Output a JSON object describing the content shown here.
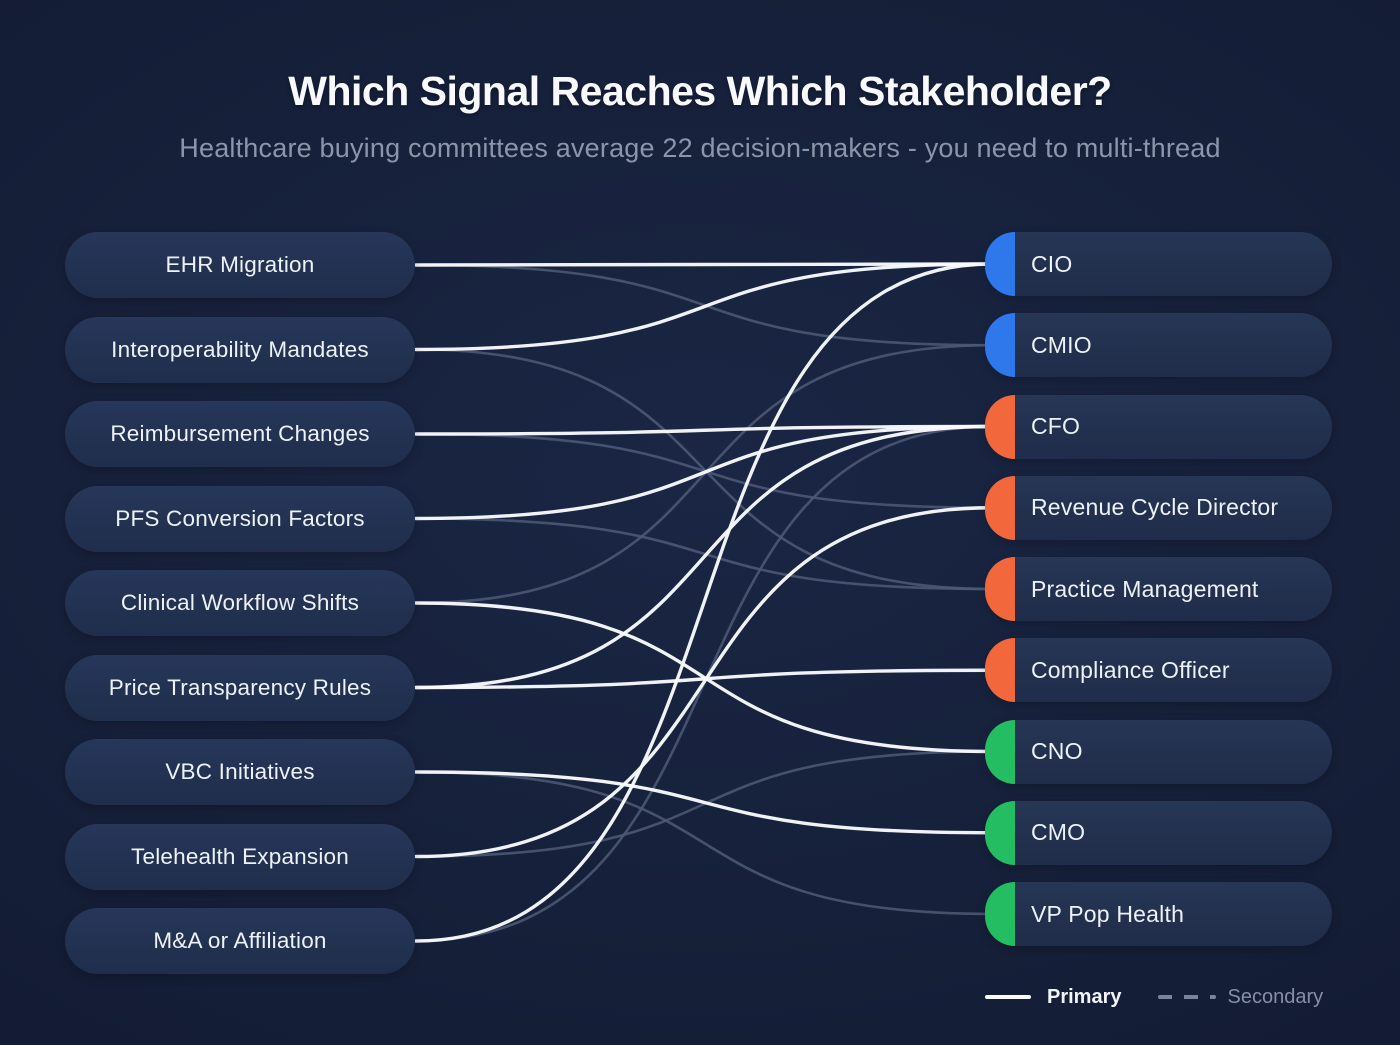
{
  "header": {
    "title": "Which Signal Reaches Which Stakeholder?",
    "subtitle": "Healthcare buying committees average 22 decision-makers - you need to multi-thread"
  },
  "signals": [
    {
      "label": "EHR Migration"
    },
    {
      "label": "Interoperability Mandates"
    },
    {
      "label": "Reimbursement Changes"
    },
    {
      "label": "PFS Conversion Factors"
    },
    {
      "label": "Clinical Workflow Shifts"
    },
    {
      "label": "Price Transparency Rules"
    },
    {
      "label": "VBC Initiatives"
    },
    {
      "label": "Telehealth Expansion"
    },
    {
      "label": "M&A or Affiliation"
    }
  ],
  "stakeholders": [
    {
      "label": "CIO",
      "accent": "#2f78ec"
    },
    {
      "label": "CMIO",
      "accent": "#2f78ec"
    },
    {
      "label": "CFO",
      "accent": "#f2683c"
    },
    {
      "label": "Revenue Cycle Director",
      "accent": "#f2683c"
    },
    {
      "label": "Practice Management",
      "accent": "#f2683c"
    },
    {
      "label": "Compliance Officer",
      "accent": "#f2683c"
    },
    {
      "label": "CNO",
      "accent": "#24bd62"
    },
    {
      "label": "CMO",
      "accent": "#24bd62"
    },
    {
      "label": "VP Pop Health",
      "accent": "#24bd62"
    }
  ],
  "connections": [
    {
      "signal": "EHR Migration",
      "stakeholder": "CIO",
      "type": "primary"
    },
    {
      "signal": "Interoperability Mandates",
      "stakeholder": "CIO",
      "type": "primary"
    },
    {
      "signal": "Reimbursement Changes",
      "stakeholder": "CFO",
      "type": "primary"
    },
    {
      "signal": "PFS Conversion Factors",
      "stakeholder": "CFO",
      "type": "primary"
    },
    {
      "signal": "Clinical Workflow Shifts",
      "stakeholder": "CNO",
      "type": "primary"
    },
    {
      "signal": "Price Transparency Rules",
      "stakeholder": "Compliance Officer",
      "type": "primary"
    },
    {
      "signal": "Price Transparency Rules",
      "stakeholder": "CFO",
      "type": "primary"
    },
    {
      "signal": "VBC Initiatives",
      "stakeholder": "CMO",
      "type": "primary"
    },
    {
      "signal": "Telehealth Expansion",
      "stakeholder": "Revenue Cycle Director",
      "type": "primary"
    },
    {
      "signal": "M&A or Affiliation",
      "stakeholder": "CIO",
      "type": "primary"
    },
    {
      "signal": "EHR Migration",
      "stakeholder": "CMIO",
      "type": "secondary"
    },
    {
      "signal": "Interoperability Mandates",
      "stakeholder": "Practice Management",
      "type": "secondary"
    },
    {
      "signal": "Reimbursement Changes",
      "stakeholder": "Revenue Cycle Director",
      "type": "secondary"
    },
    {
      "signal": "PFS Conversion Factors",
      "stakeholder": "Practice Management",
      "type": "secondary"
    },
    {
      "signal": "Clinical Workflow Shifts",
      "stakeholder": "CMIO",
      "type": "secondary"
    },
    {
      "signal": "Telehealth Expansion",
      "stakeholder": "CNO",
      "type": "secondary"
    },
    {
      "signal": "VBC Initiatives",
      "stakeholder": "VP Pop Health",
      "type": "secondary"
    },
    {
      "signal": "M&A or Affiliation",
      "stakeholder": "CFO",
      "type": "secondary"
    }
  ],
  "legend": {
    "primary_label": "Primary",
    "secondary_label": "Secondary"
  },
  "colors": {
    "background": "#16203a",
    "primary_line": "#f8fafc",
    "secondary_line": "#4f5b76",
    "blue_accent": "#2f78ec",
    "orange_accent": "#f2683c",
    "green_accent": "#24bd62"
  }
}
